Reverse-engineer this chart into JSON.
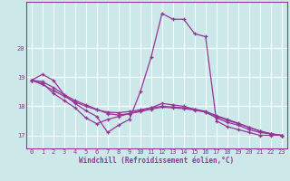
{
  "xlabel": "Windchill (Refroidissement éolien,°C)",
  "bg_color": "#cce8e8",
  "line_color": "#993399",
  "grid_color": "#ffffff",
  "xlim": [
    -0.5,
    23.5
  ],
  "ylim": [
    16.55,
    21.6
  ],
  "yticks": [
    17,
    18,
    19,
    20
  ],
  "xticks": [
    0,
    1,
    2,
    3,
    4,
    5,
    6,
    7,
    8,
    9,
    10,
    11,
    12,
    13,
    14,
    15,
    16,
    17,
    18,
    19,
    20,
    21,
    22,
    23
  ],
  "series": [
    {
      "x": [
        0,
        1,
        2,
        3,
        4,
        5,
        6,
        7,
        8,
        9,
        10,
        11,
        12,
        13,
        14,
        15,
        16,
        17,
        18,
        19,
        20,
        21,
        22,
        23
      ],
      "y": [
        18.9,
        19.1,
        18.9,
        18.4,
        18.1,
        17.85,
        17.65,
        17.1,
        17.35,
        17.55,
        18.5,
        19.7,
        21.2,
        21.0,
        21.0,
        20.5,
        20.4,
        17.5,
        17.3,
        17.2,
        17.1,
        17.0,
        17.0,
        17.0
      ]
    },
    {
      "x": [
        0,
        1,
        2,
        3,
        4,
        5,
        6,
        7,
        8,
        9,
        10,
        11,
        12,
        13,
        14,
        15,
        16,
        17,
        18,
        19,
        20,
        21,
        22,
        23
      ],
      "y": [
        18.9,
        18.8,
        18.45,
        18.2,
        17.95,
        17.6,
        17.4,
        17.55,
        17.65,
        17.75,
        17.85,
        17.95,
        18.1,
        18.05,
        18.0,
        17.9,
        17.8,
        17.6,
        17.45,
        17.35,
        17.2,
        17.1,
        17.05,
        17.0
      ]
    },
    {
      "x": [
        0,
        1,
        2,
        3,
        4,
        5,
        6,
        7,
        8,
        9,
        10,
        11,
        12,
        13,
        14,
        15,
        16,
        17,
        18,
        19,
        20,
        21,
        22,
        23
      ],
      "y": [
        18.9,
        18.85,
        18.65,
        18.4,
        18.2,
        18.05,
        17.9,
        17.75,
        17.7,
        17.75,
        17.82,
        17.9,
        17.97,
        17.95,
        17.92,
        17.87,
        17.8,
        17.65,
        17.52,
        17.4,
        17.27,
        17.15,
        17.05,
        17.0
      ]
    },
    {
      "x": [
        0,
        1,
        2,
        3,
        4,
        5,
        6,
        7,
        8,
        9,
        10,
        11,
        12,
        13,
        14,
        15,
        16,
        17,
        18,
        19,
        20,
        21,
        22,
        23
      ],
      "y": [
        18.9,
        18.75,
        18.55,
        18.35,
        18.15,
        18.0,
        17.88,
        17.8,
        17.78,
        17.82,
        17.88,
        17.95,
        18.0,
        17.98,
        17.95,
        17.9,
        17.83,
        17.68,
        17.55,
        17.42,
        17.28,
        17.15,
        17.06,
        17.0
      ]
    }
  ]
}
